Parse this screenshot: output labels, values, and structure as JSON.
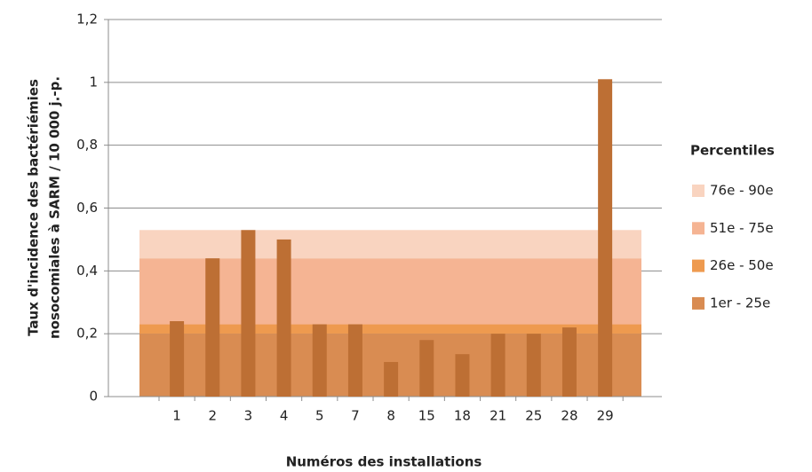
{
  "chart_data": {
    "type": "bar",
    "categories": [
      "1",
      "2",
      "3",
      "4",
      "5",
      "7",
      "8",
      "15",
      "18",
      "21",
      "25",
      "28",
      "29"
    ],
    "values": [
      0.24,
      0.44,
      0.53,
      0.5,
      0.23,
      0.23,
      0.11,
      0.18,
      0.135,
      0.2,
      0.2,
      0.22,
      1.01
    ],
    "color": "#bd6f34",
    "bands": [
      {
        "name": "1er - 25e",
        "color": "#d98c52",
        "value": 0.2
      },
      {
        "name": "26e - 50e",
        "color": "#ee9a4f",
        "value": 0.23
      },
      {
        "name": "51e - 75e",
        "color": "#f5b493",
        "value": 0.44
      },
      {
        "name": "76e - 90e",
        "color": "#f9d4c0",
        "value": 0.53
      }
    ],
    "legend_title": "Percentiles",
    "legend_position": "right",
    "x_label": "Numéros des installations",
    "y_label": [
      "Taux d'incidence des bactériémies",
      "nosocomiales à SARM / 10 000 j.-p."
    ],
    "ylim": [
      0,
      1.2
    ],
    "yticks": [
      0,
      {
        "value": 0.2,
        "label": "0,2"
      },
      {
        "value": 0.4,
        "label": "0,4"
      },
      {
        "value": 0.6,
        "label": "0,6"
      },
      {
        "value": 0.8,
        "label": "0,8"
      },
      1,
      {
        "value": 1.2,
        "label": "1,2"
      }
    ],
    "grid": true
  }
}
